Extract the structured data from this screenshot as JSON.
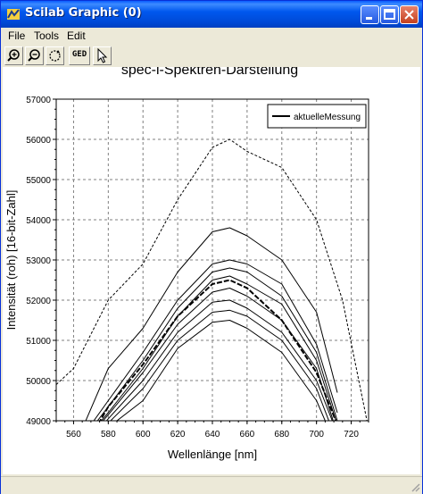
{
  "window": {
    "title": "Scilab Graphic (0)",
    "icon": "scilab-icon",
    "controls": [
      "minimize-icon",
      "maximize-icon",
      "close-icon"
    ]
  },
  "menu": [
    "File",
    "Tools",
    "Edit"
  ],
  "toolbar": {
    "buttons": [
      "zoom-in-icon",
      "zoom-out-icon",
      "rotate-icon",
      "ged-icon",
      "pointer-icon"
    ],
    "ged_label": "GED"
  },
  "chart_data": {
    "type": "line",
    "title": "spec-i-Spektren-Darstellung",
    "xlabel": "Wellenlänge [nm]",
    "ylabel": "Intensität (roh) [16-bit-Zahl]",
    "xlim": [
      550,
      730
    ],
    "ylim": [
      49000,
      57000
    ],
    "x_ticks": [
      560,
      580,
      600,
      620,
      640,
      660,
      680,
      700,
      720
    ],
    "y_ticks": [
      49000,
      50000,
      51000,
      52000,
      53000,
      54000,
      55000,
      56000,
      57000
    ],
    "grid": true,
    "legend": {
      "position": "top-right",
      "entries": [
        "aktuelleMessung"
      ]
    },
    "series": [
      {
        "name": "aktuelleMessung",
        "style": "solid-bold",
        "x": [
          562,
          580,
          600,
          620,
          640,
          650,
          660,
          680,
          700,
          712
        ],
        "y": [
          48000,
          49350,
          50400,
          51600,
          52400,
          52500,
          52300,
          51500,
          50200,
          48900
        ]
      },
      {
        "style": "dashed",
        "x": [
          550,
          560,
          580,
          600,
          620,
          640,
          650,
          660,
          680,
          700,
          715,
          730
        ],
        "y": [
          49900,
          50300,
          52000,
          52900,
          54500,
          55800,
          56000,
          55700,
          55300,
          54000,
          52000,
          48800
        ]
      },
      {
        "style": "solid",
        "x": [
          565,
          580,
          600,
          620,
          640,
          650,
          660,
          680,
          700,
          712
        ],
        "y": [
          48800,
          50300,
          51300,
          52700,
          53700,
          53800,
          53600,
          53000,
          51700,
          49700
        ]
      },
      {
        "style": "solid",
        "x": [
          570,
          580,
          600,
          620,
          640,
          650,
          660,
          680,
          700,
          712
        ],
        "y": [
          48900,
          49500,
          50700,
          52000,
          52900,
          53000,
          52900,
          52400,
          50900,
          49200
        ]
      },
      {
        "style": "solid",
        "x": [
          572,
          580,
          600,
          620,
          640,
          650,
          660,
          680,
          700,
          712
        ],
        "y": [
          48900,
          49350,
          50500,
          51800,
          52700,
          52800,
          52700,
          52100,
          50700,
          49000
        ]
      },
      {
        "style": "solid",
        "x": [
          574,
          580,
          600,
          620,
          640,
          650,
          660,
          680,
          700,
          712
        ],
        "y": [
          48900,
          49200,
          50300,
          51600,
          52500,
          52600,
          52400,
          51900,
          50500,
          48900
        ]
      },
      {
        "style": "solid",
        "x": [
          575,
          580,
          600,
          620,
          640,
          650,
          660,
          680,
          700,
          710
        ],
        "y": [
          48900,
          49150,
          50200,
          51400,
          52200,
          52300,
          52100,
          51500,
          50300,
          48950
        ]
      },
      {
        "style": "solid",
        "x": [
          577,
          580,
          600,
          620,
          640,
          650,
          660,
          680,
          700,
          710
        ],
        "y": [
          48900,
          49050,
          50000,
          51200,
          51950,
          52000,
          51800,
          51200,
          50000,
          48900
        ]
      },
      {
        "style": "solid",
        "x": [
          579,
          600,
          620,
          640,
          650,
          660,
          680,
          700,
          708
        ],
        "y": [
          48900,
          49800,
          51000,
          51700,
          51750,
          51600,
          51000,
          49800,
          48900
        ]
      },
      {
        "style": "solid",
        "x": [
          582,
          600,
          620,
          640,
          650,
          660,
          680,
          700,
          706
        ],
        "y": [
          48900,
          49500,
          50800,
          51450,
          51500,
          51300,
          50700,
          49500,
          48900
        ]
      }
    ]
  }
}
